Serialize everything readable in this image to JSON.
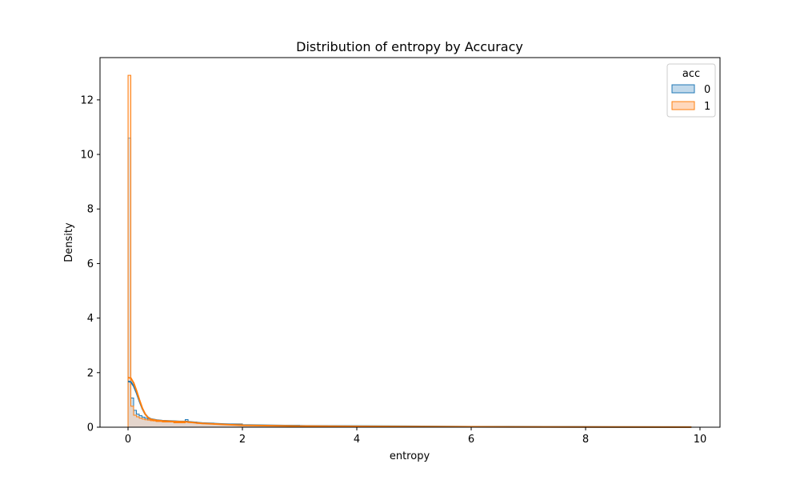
{
  "chart_data": {
    "type": "histogram",
    "title": "Distribution of entropy by Accuracy",
    "xlabel": "entropy",
    "ylabel": "Density",
    "xlim": [
      -0.49,
      10.35
    ],
    "ylim": [
      0,
      13.55
    ],
    "xticks": [
      0,
      2,
      4,
      6,
      8,
      10
    ],
    "yticks": [
      0,
      2,
      4,
      6,
      8,
      10,
      12
    ],
    "grid": false,
    "legend": {
      "title": "acc",
      "position": "top-right"
    },
    "bin_width": 0.049,
    "series": [
      {
        "name": "0",
        "color": "#1f77b4",
        "fill": "#a6c9e3",
        "hist": [
          [
            0.0,
            10.6
          ],
          [
            0.049,
            1.07
          ],
          [
            0.098,
            0.62
          ],
          [
            0.147,
            0.48
          ],
          [
            0.196,
            0.42
          ],
          [
            0.245,
            0.37
          ],
          [
            0.294,
            0.33
          ],
          [
            0.343,
            0.3
          ],
          [
            0.392,
            0.28
          ],
          [
            0.441,
            0.26
          ],
          [
            0.49,
            0.24
          ],
          [
            0.6,
            0.21
          ],
          [
            0.8,
            0.19
          ],
          [
            0.96,
            0.19
          ],
          [
            1.0,
            0.28
          ],
          [
            1.05,
            0.19
          ],
          [
            1.2,
            0.15
          ],
          [
            1.5,
            0.12
          ],
          [
            2.0,
            0.07
          ],
          [
            3.0,
            0.04
          ],
          [
            4.0,
            0.03
          ],
          [
            6.0,
            0.02
          ],
          [
            8.0,
            0.01
          ],
          [
            9.8,
            0.0
          ]
        ],
        "kde": [
          [
            0.0,
            1.68
          ],
          [
            0.05,
            1.66
          ],
          [
            0.1,
            1.5
          ],
          [
            0.15,
            1.25
          ],
          [
            0.2,
            0.95
          ],
          [
            0.25,
            0.68
          ],
          [
            0.3,
            0.48
          ],
          [
            0.35,
            0.36
          ],
          [
            0.4,
            0.3
          ],
          [
            0.5,
            0.26
          ],
          [
            0.6,
            0.24
          ],
          [
            0.8,
            0.22
          ],
          [
            0.9,
            0.21
          ],
          [
            1.0,
            0.21
          ],
          [
            1.1,
            0.19
          ],
          [
            1.3,
            0.15
          ],
          [
            1.6,
            0.12
          ],
          [
            2.0,
            0.08
          ],
          [
            3.0,
            0.05
          ],
          [
            4.0,
            0.04
          ],
          [
            6.0,
            0.02
          ],
          [
            8.0,
            0.01
          ],
          [
            9.85,
            0.005
          ]
        ]
      },
      {
        "name": "1",
        "color": "#ff7f0e",
        "fill": "#ffc8a0",
        "hist": [
          [
            0.0,
            12.9
          ],
          [
            0.049,
            0.77
          ],
          [
            0.098,
            0.44
          ],
          [
            0.147,
            0.38
          ],
          [
            0.196,
            0.33
          ],
          [
            0.245,
            0.3
          ],
          [
            0.294,
            0.27
          ],
          [
            0.343,
            0.26
          ],
          [
            0.392,
            0.24
          ],
          [
            0.441,
            0.23
          ],
          [
            0.49,
            0.21
          ],
          [
            0.6,
            0.19
          ],
          [
            0.8,
            0.16
          ],
          [
            0.96,
            0.16
          ],
          [
            1.0,
            0.22
          ],
          [
            1.05,
            0.17
          ],
          [
            1.2,
            0.14
          ],
          [
            1.5,
            0.11
          ],
          [
            2.0,
            0.06
          ],
          [
            3.0,
            0.03
          ],
          [
            4.0,
            0.02
          ],
          [
            6.0,
            0.01
          ],
          [
            8.0,
            0.005
          ],
          [
            9.8,
            0.0
          ]
        ],
        "kde": [
          [
            0.0,
            1.82
          ],
          [
            0.05,
            1.8
          ],
          [
            0.1,
            1.62
          ],
          [
            0.15,
            1.33
          ],
          [
            0.2,
            1.0
          ],
          [
            0.25,
            0.7
          ],
          [
            0.3,
            0.48
          ],
          [
            0.35,
            0.35
          ],
          [
            0.4,
            0.29
          ],
          [
            0.5,
            0.25
          ],
          [
            0.6,
            0.23
          ],
          [
            0.8,
            0.21
          ],
          [
            0.9,
            0.2
          ],
          [
            1.0,
            0.2
          ],
          [
            1.1,
            0.18
          ],
          [
            1.3,
            0.14
          ],
          [
            1.6,
            0.11
          ],
          [
            2.0,
            0.07
          ],
          [
            3.0,
            0.04
          ],
          [
            4.0,
            0.03
          ],
          [
            6.0,
            0.015
          ],
          [
            8.0,
            0.008
          ],
          [
            9.85,
            0.004
          ]
        ]
      }
    ]
  }
}
